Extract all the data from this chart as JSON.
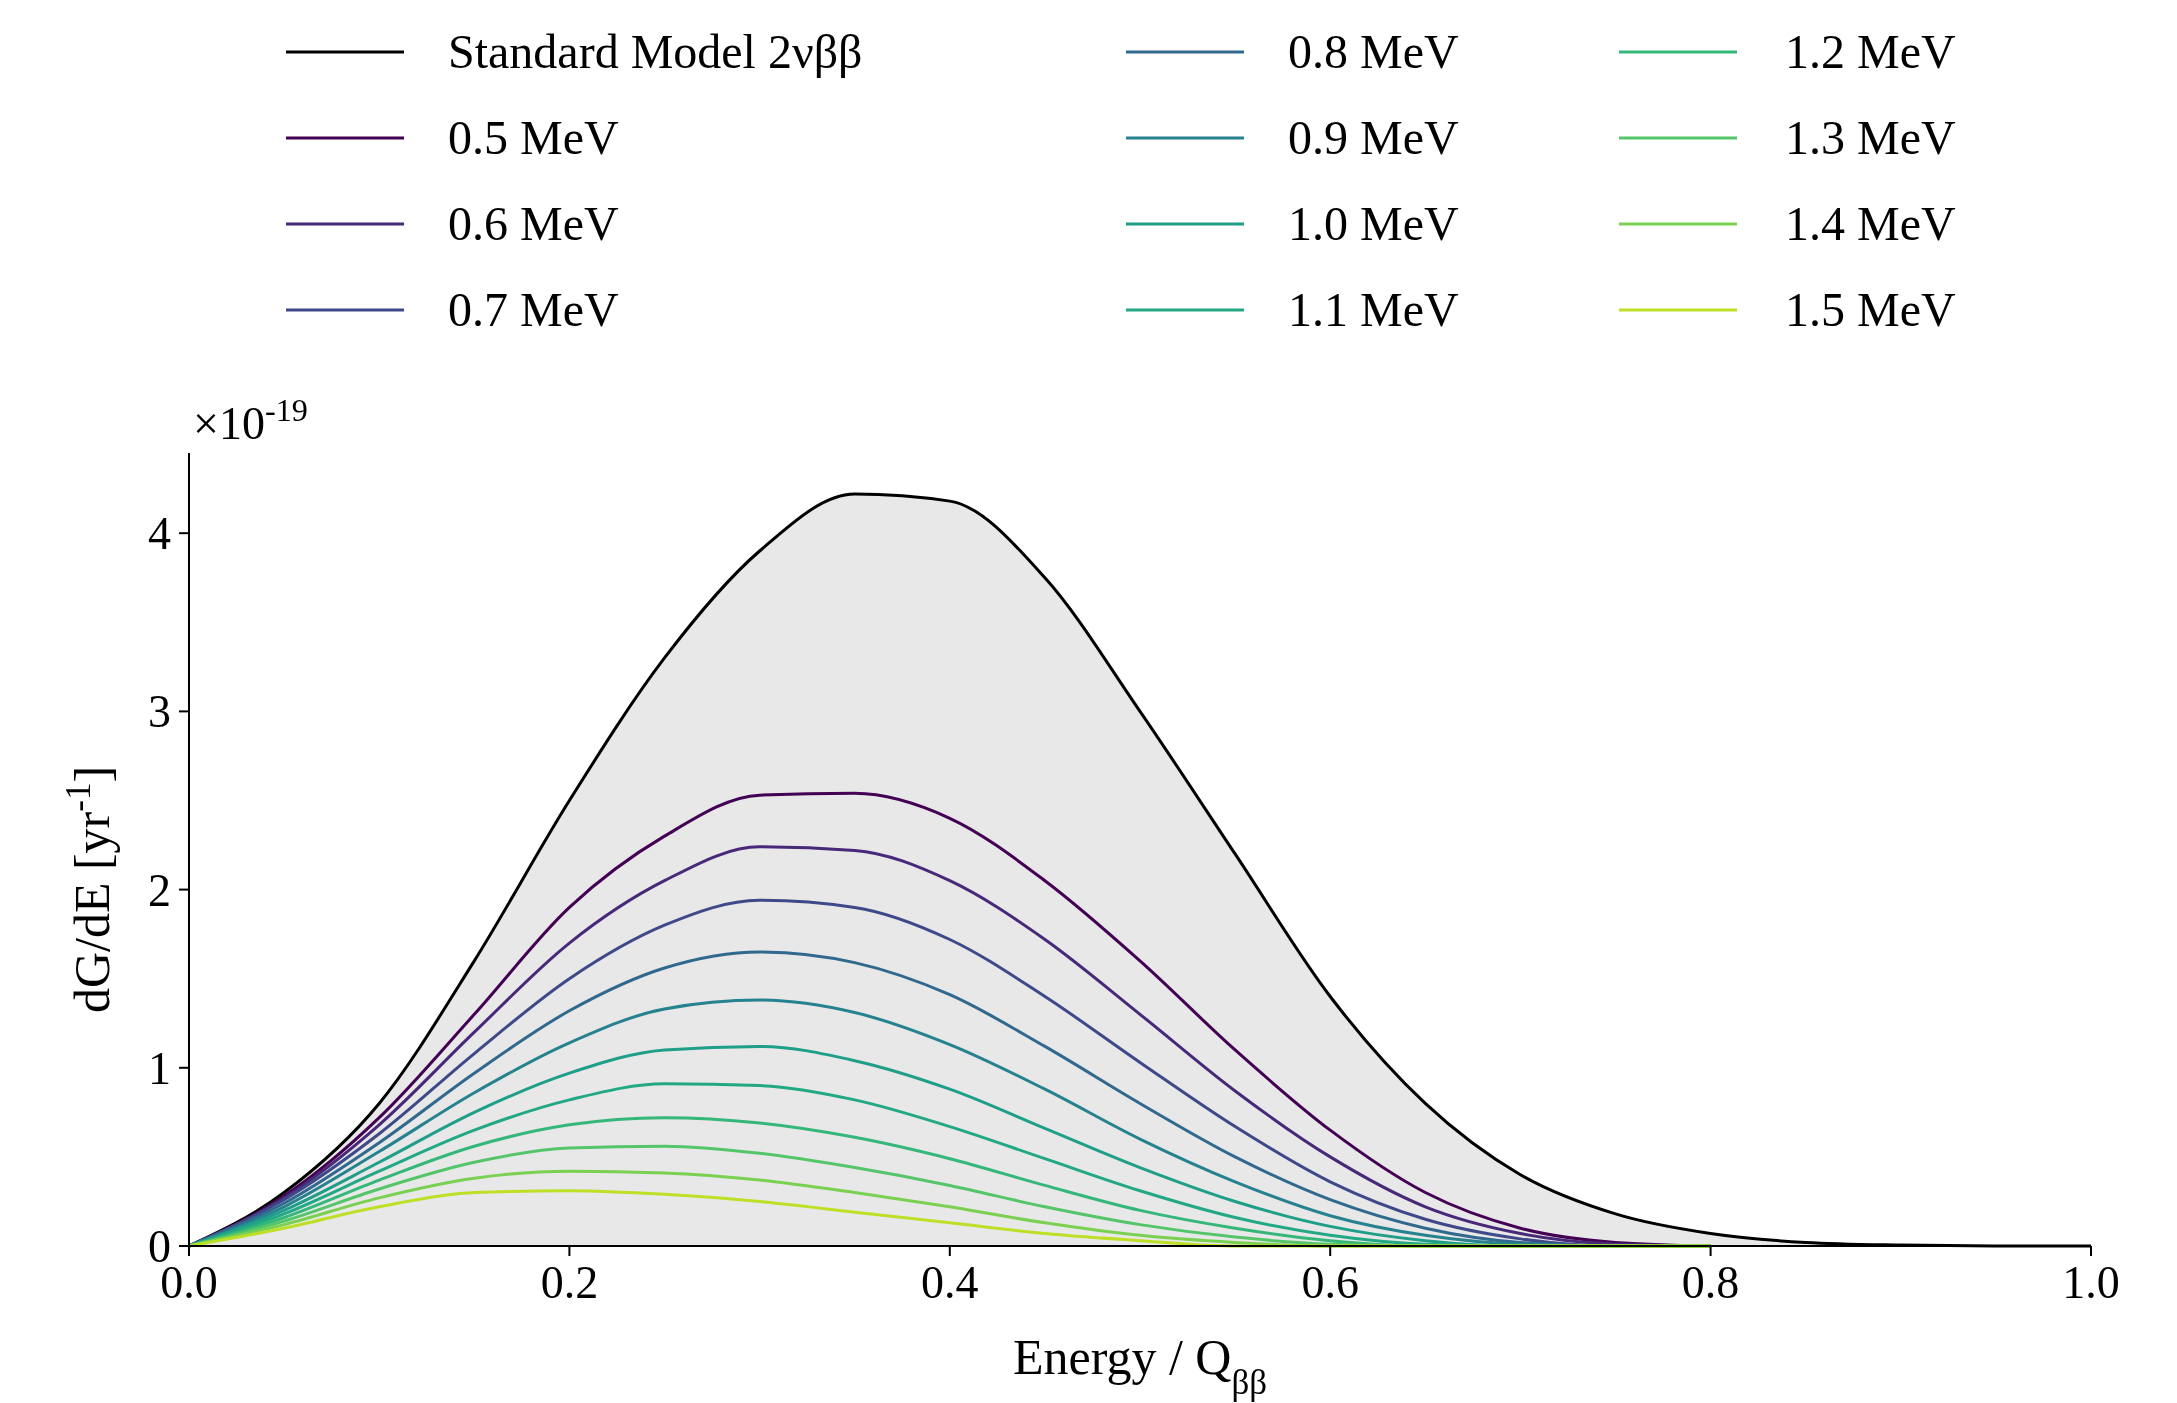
{
  "chart_data": {
    "type": "line",
    "xlabel": "Energy / Q$_{ββ}$",
    "ylabel": "dG/dE [yr$^{-1}$]",
    "annotations": [
      "×10$^{-19}$"
    ],
    "x": [
      0,
      0.05,
      0.1,
      0.15,
      0.2,
      0.25,
      0.3,
      0.35,
      0.4,
      0.45,
      0.5,
      0.55,
      0.6,
      0.65,
      0.7,
      0.75,
      0.8
    ],
    "series": [
      {
        "name": "Standard Model 2νββ",
        "type": "area",
        "color": "#000000",
        "x": [
          0,
          0.05,
          0.1,
          0.15,
          0.2,
          0.25,
          0.3,
          0.35,
          0.4,
          0.45,
          0.5,
          0.55,
          0.6,
          0.65,
          0.7,
          0.75,
          0.8,
          0.85,
          0.9,
          0.95,
          1.0
        ],
        "values": [
          0,
          0.3,
          0.8,
          1.6,
          2.5,
          3.3,
          3.9,
          4.22,
          4.18,
          3.75,
          3.0,
          2.2,
          1.4,
          0.8,
          0.4,
          0.18,
          0.07,
          0.02,
          0.005,
          0,
          0
        ]
      },
      {
        "name": "0.5 MeV",
        "color": "#440154",
        "values": [
          0,
          0.28,
          0.72,
          1.3,
          1.9,
          2.3,
          2.53,
          2.54,
          2.4,
          2.05,
          1.6,
          1.1,
          0.65,
          0.3,
          0.1,
          0.02,
          0
        ]
      },
      {
        "name": "0.6 MeV",
        "color": "#482878",
        "values": [
          0,
          0.27,
          0.68,
          1.2,
          1.7,
          2.05,
          2.24,
          2.22,
          2.05,
          1.72,
          1.3,
          0.87,
          0.5,
          0.22,
          0.07,
          0.01,
          0
        ]
      },
      {
        "name": "0.7 MeV",
        "color": "#3e4989",
        "values": [
          0,
          0.26,
          0.63,
          1.08,
          1.5,
          1.8,
          1.94,
          1.9,
          1.72,
          1.4,
          1.03,
          0.67,
          0.36,
          0.15,
          0.04,
          0,
          0
        ]
      },
      {
        "name": "0.8 MeV",
        "color": "#31688e",
        "values": [
          0,
          0.24,
          0.58,
          0.97,
          1.32,
          1.56,
          1.65,
          1.59,
          1.41,
          1.12,
          0.8,
          0.5,
          0.26,
          0.1,
          0.02,
          0,
          0
        ]
      },
      {
        "name": "0.9 MeV",
        "color": "#26828e",
        "values": [
          0,
          0.22,
          0.53,
          0.86,
          1.14,
          1.33,
          1.38,
          1.31,
          1.13,
          0.88,
          0.6,
          0.36,
          0.17,
          0.06,
          0.01,
          0,
          0
        ]
      },
      {
        "name": "1.0 MeV",
        "color": "#1f9e89",
        "values": [
          0,
          0.2,
          0.47,
          0.75,
          0.97,
          1.1,
          1.12,
          1.04,
          0.88,
          0.66,
          0.44,
          0.25,
          0.11,
          0.03,
          0,
          0,
          0
        ]
      },
      {
        "name": "1.1 MeV",
        "color": "#22a884",
        "values": [
          0,
          0.18,
          0.42,
          0.65,
          0.82,
          0.91,
          0.9,
          0.82,
          0.67,
          0.49,
          0.31,
          0.16,
          0.06,
          0.01,
          0,
          0,
          0
        ]
      },
      {
        "name": "1.2 MeV",
        "color": "#35b779",
        "values": [
          0,
          0.16,
          0.37,
          0.56,
          0.68,
          0.72,
          0.69,
          0.61,
          0.49,
          0.34,
          0.2,
          0.1,
          0.03,
          0,
          0,
          0,
          0
        ]
      },
      {
        "name": "1.3 MeV",
        "color": "#54c568",
        "values": [
          0,
          0.14,
          0.32,
          0.47,
          0.55,
          0.56,
          0.52,
          0.44,
          0.34,
          0.22,
          0.12,
          0.05,
          0.01,
          0,
          0,
          0,
          0
        ]
      },
      {
        "name": "1.4 MeV",
        "color": "#7ad151",
        "values": [
          0,
          0.12,
          0.27,
          0.38,
          0.42,
          0.41,
          0.37,
          0.3,
          0.22,
          0.13,
          0.06,
          0.02,
          0,
          0,
          0,
          0,
          0
        ]
      },
      {
        "name": "1.5 MeV",
        "color": "#bddf26",
        "values": [
          0,
          0.1,
          0.22,
          0.3,
          0.31,
          0.29,
          0.25,
          0.19,
          0.13,
          0.07,
          0.03,
          0,
          0,
          0,
          0,
          0,
          0
        ]
      }
    ],
    "xlim": [
      0,
      1
    ],
    "ylim": [
      0,
      4.45
    ],
    "xticks": [
      {
        "value": 0,
        "label": "0.0"
      },
      {
        "value": 0.2,
        "label": "0.2"
      },
      {
        "value": 0.4,
        "label": "0.4"
      },
      {
        "value": 0.6,
        "label": "0.6"
      },
      {
        "value": 0.8,
        "label": "0.8"
      },
      {
        "value": 1,
        "label": "1.0"
      }
    ],
    "yticks": [
      0,
      1,
      2,
      3,
      4
    ],
    "legend": "top",
    "grid": false,
    "marker": "none",
    "line_style": "solid"
  }
}
